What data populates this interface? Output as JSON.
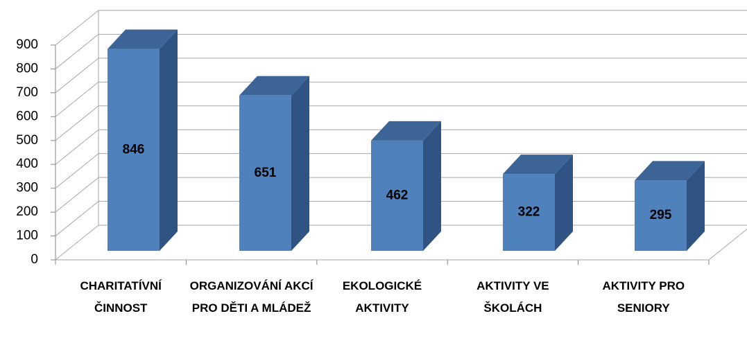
{
  "chart_data": {
    "type": "bar3d",
    "categories": [
      "CHARITATÍVNÍ ČINNOST",
      "ORGANIZOVÁNÍ AKCÍ PRO DĚTI A MLÁDEŽ",
      "EKOLOGICKÉ AKTIVITY",
      "AKTIVITY VE ŠKOLÁCH",
      "AKTIVITY PRO SENIORY"
    ],
    "values": [
      846,
      651,
      462,
      322,
      295
    ],
    "color": "#4f81bd",
    "ylim": [
      0,
      900
    ],
    "yticks": [
      0,
      100,
      200,
      300,
      400,
      500,
      600,
      700,
      800,
      900
    ],
    "grid": true
  }
}
